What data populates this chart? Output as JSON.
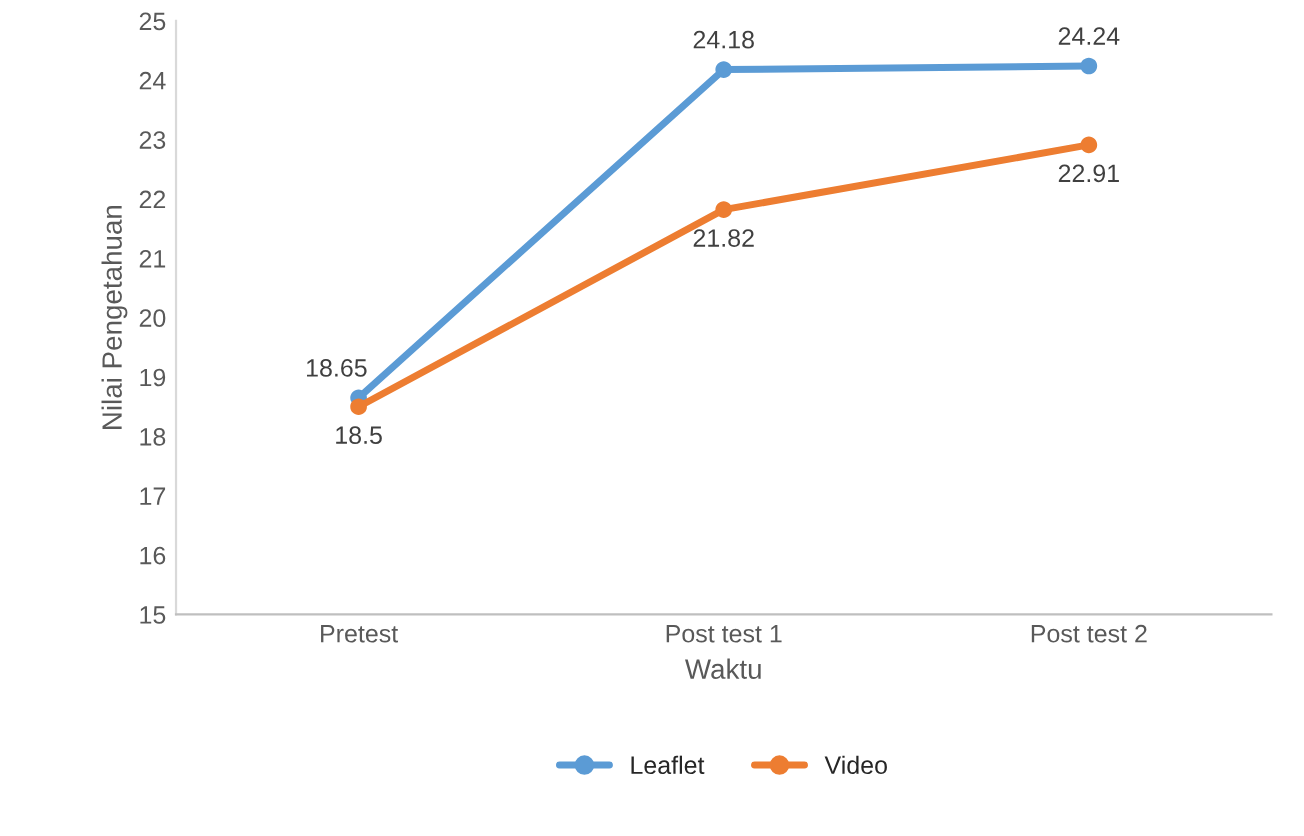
{
  "chart_data": {
    "type": "line",
    "xlabel": "Waktu",
    "ylabel": "Nilai Pengetahuan",
    "categories": [
      "Pretest",
      "Post test 1",
      "Post test 2"
    ],
    "series": [
      {
        "name": "Leaflet",
        "color": "#5b9bd5",
        "values": [
          18.65,
          24.18,
          24.24
        ]
      },
      {
        "name": "Video",
        "color": "#ed7d31",
        "values": [
          18.5,
          21.82,
          22.91
        ]
      }
    ],
    "ylim": [
      15,
      25
    ],
    "yticks": [
      15,
      16,
      17,
      18,
      19,
      20,
      21,
      22,
      23,
      24,
      25
    ],
    "grid": false,
    "legend": "bottom",
    "marker": "circle",
    "line_style": "solid",
    "data_labels": true
  }
}
